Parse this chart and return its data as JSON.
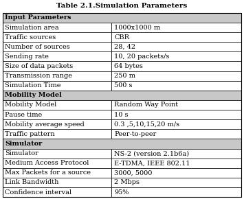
{
  "title": "Table 2.1.Simulation Parameters",
  "col_split": 0.455,
  "section_bg": "#c8c8c8",
  "row_bg": "#ffffff",
  "border_color": "#000000",
  "text_color": "#000000",
  "font_size": 7.0,
  "title_font_size": 7.5,
  "sections": [
    {
      "section_label": "Input Parameters",
      "rows": [
        [
          "Simulation area",
          "1000x1000 m"
        ],
        [
          "Traffic sources",
          "CBR"
        ],
        [
          "Number of sources",
          "28, 42"
        ],
        [
          "Sending rate",
          "10, 20 packets/s"
        ],
        [
          "Size of data packets",
          "64 bytes"
        ],
        [
          "Transmission range",
          "250 m"
        ],
        [
          "Simulation Time",
          "500 s"
        ]
      ]
    },
    {
      "section_label": "Mobility Model",
      "rows": [
        [
          "Mobility Model",
          "Random Way Point"
        ],
        [
          "Pause time",
          "10 s"
        ],
        [
          "Mobility average speed",
          "0.3 ,5,10,15,20 m/s"
        ],
        [
          "Traffic pattern",
          "Peer-to-peer"
        ]
      ]
    },
    {
      "section_label": "Simulator",
      "rows": [
        [
          "Simulator",
          "NS-2 (version 2.1b6a)"
        ],
        [
          "Medium Access Protocol",
          "E-TDMA, IEEE 802.11"
        ],
        [
          "Max Packets for a source",
          "3000, 5000"
        ],
        [
          "Link Bandwidth",
          "2 Mbps"
        ],
        [
          "Confidence interval",
          "95%"
        ]
      ]
    }
  ]
}
